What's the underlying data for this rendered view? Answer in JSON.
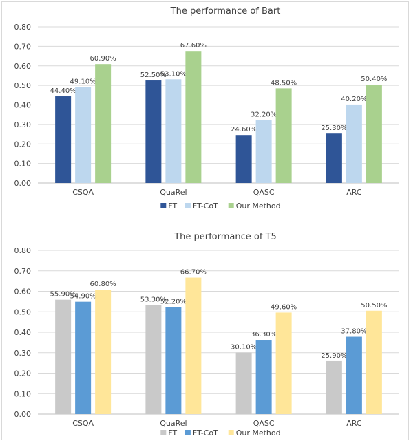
{
  "chart_data": [
    {
      "type": "bar",
      "title": "The performance of Bart",
      "categories": [
        "CSQA",
        "QuaRel",
        "QASC",
        "ARC"
      ],
      "ylim": [
        0,
        0.8
      ],
      "yticks": [
        "0.00",
        "0.10",
        "0.20",
        "0.30",
        "0.40",
        "0.50",
        "0.60",
        "0.70",
        "0.80"
      ],
      "grid": true,
      "legend_position": "bottom",
      "series": [
        {
          "name": "FT",
          "color": "#2f5597",
          "values": [
            0.444,
            0.525,
            0.246,
            0.253
          ],
          "labels": [
            "44.40%",
            "52.50%",
            "24.60%",
            "25.30%"
          ]
        },
        {
          "name": "FT-CoT",
          "color": "#bdd7ee",
          "values": [
            0.491,
            0.531,
            0.322,
            0.402
          ],
          "labels": [
            "49.10%",
            "53.10%",
            "32.20%",
            "40.20%"
          ]
        },
        {
          "name": "Our Method",
          "color": "#a9d18e",
          "values": [
            0.609,
            0.676,
            0.485,
            0.504
          ],
          "labels": [
            "60.90%",
            "67.60%",
            "48.50%",
            "50.40%"
          ]
        }
      ]
    },
    {
      "type": "bar",
      "title": "The performance of T5",
      "categories": [
        "CSQA",
        "QuaRel",
        "QASC",
        "ARC"
      ],
      "ylim": [
        0,
        0.8
      ],
      "yticks": [
        "0.00",
        "0.10",
        "0.20",
        "0.30",
        "0.40",
        "0.50",
        "0.60",
        "0.70",
        "0.80"
      ],
      "grid": true,
      "legend_position": "bottom",
      "series": [
        {
          "name": "FT",
          "color": "#c9c9c9",
          "values": [
            0.559,
            0.533,
            0.301,
            0.259
          ],
          "labels": [
            "55.90%",
            "53.30%",
            "30.10%",
            "25.90%"
          ]
        },
        {
          "name": "FT-CoT",
          "color": "#5b9bd5",
          "values": [
            0.549,
            0.522,
            0.363,
            0.378
          ],
          "labels": [
            "54.90%",
            "52.20%",
            "36.30%",
            "37.80%"
          ]
        },
        {
          "name": "Our Method",
          "color": "#ffe699",
          "values": [
            0.608,
            0.667,
            0.496,
            0.505
          ],
          "labels": [
            "60.80%",
            "66.70%",
            "49.60%",
            "50.50%"
          ]
        }
      ]
    }
  ]
}
